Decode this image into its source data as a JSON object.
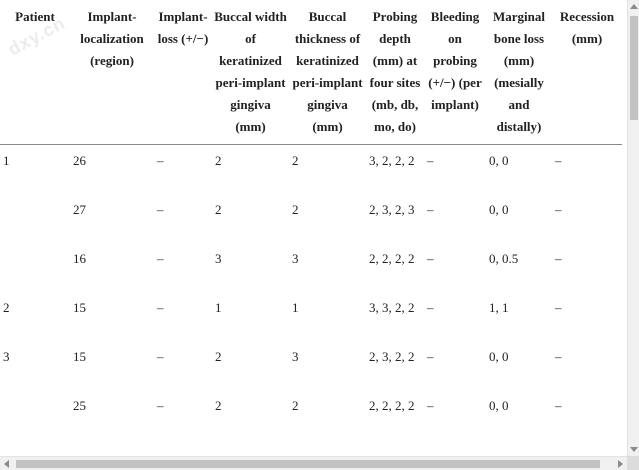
{
  "watermark": "dxy.cn",
  "table": {
    "headers": [
      "Patient",
      "Implant-localization (region)",
      "Implant-loss (+/−)",
      "Buccal width of keratinized peri-implant gingiva (mm)",
      "Buccal thickness of keratinized peri-implant gingiva (mm)",
      "Probing depth (mm) at four sites (mb, db, mo, do)",
      "Bleeding on probing (+/−) (per implant)",
      "Marginal bone loss (mm) (mesially and distally)",
      "Recession (mm)"
    ],
    "rows": [
      [
        "1",
        "26",
        "–",
        "2",
        "2",
        "3, 2, 2, 2",
        "–",
        "0, 0",
        "–"
      ],
      [
        "",
        "27",
        "–",
        "2",
        "2",
        "2, 3, 2, 3",
        "–",
        "0, 0",
        "–"
      ],
      [
        "",
        "16",
        "–",
        "3",
        "3",
        "2, 2, 2, 2",
        "–",
        "0, 0.5",
        "–"
      ],
      [
        "2",
        "15",
        "–",
        "1",
        "1",
        "3, 3, 2, 2",
        "–",
        "1, 1",
        "–"
      ],
      [
        "3",
        "15",
        "–",
        "2",
        "3",
        "2, 3, 2, 2",
        "–",
        "0, 0",
        "–"
      ],
      [
        "",
        "25",
        "–",
        "2",
        "2",
        "2, 2, 2, 2",
        "–",
        "0, 0",
        "–"
      ]
    ]
  }
}
